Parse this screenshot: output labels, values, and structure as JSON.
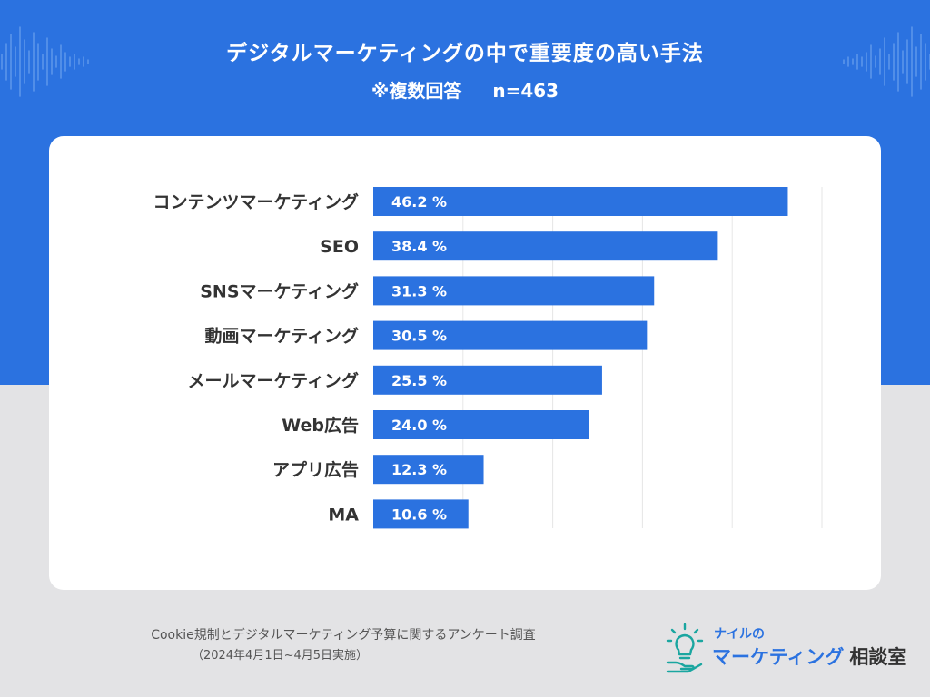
{
  "header": {
    "title": "デジタルマーケティングの中で重要度の高い手法",
    "note": "※複数回答",
    "sample": "n=463"
  },
  "colors": {
    "band": "#2b72e0",
    "bar": "#2b72e0",
    "card": "#ffffff",
    "background": "#e3e3e5",
    "label": "#333333",
    "grid": "#e6e6e6"
  },
  "chart_data": {
    "type": "bar",
    "orientation": "horizontal",
    "title": "デジタルマーケティングの中で重要度の高い手法",
    "categories": [
      "コンテンツマーケティング",
      "SEO",
      "SNSマーケティング",
      "動画マーケティング",
      "メールマーケティング",
      "Web広告",
      "アプリ広告",
      "MA"
    ],
    "values": [
      46.2,
      38.4,
      31.3,
      30.5,
      25.5,
      24.0,
      12.3,
      10.6
    ],
    "value_labels": [
      "46.2 %",
      "38.4 %",
      "31.3 %",
      "30.5 %",
      "25.5 %",
      "24.0 %",
      "12.3 %",
      "10.6 %"
    ],
    "unit": "%",
    "xlim": [
      0,
      50
    ],
    "grid": true,
    "xlabel": "",
    "ylabel": ""
  },
  "footer": {
    "survey": "Cookie規制とデジタルマーケティング予算に関するアンケート調査",
    "period": "（2024年4月1日~4月5日実施）"
  },
  "logo": {
    "top": "ナイルの",
    "main": "マーケティング",
    "accent": "相談室"
  }
}
